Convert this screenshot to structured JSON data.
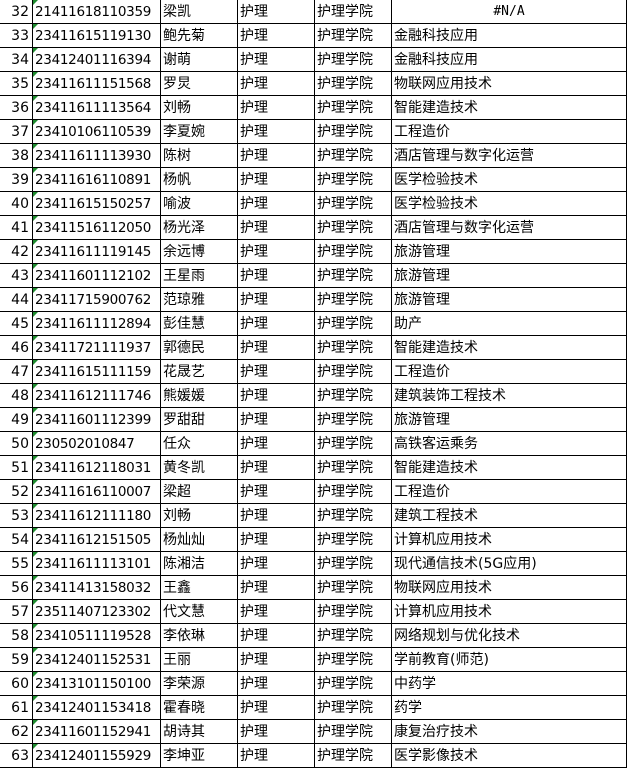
{
  "rows": [
    {
      "no": "32",
      "id": "21411618110359",
      "name": "梁凯",
      "major": "护理",
      "college": "护理学院",
      "target": "#N/A"
    },
    {
      "no": "33",
      "id": "23411615119130",
      "name": "鲍先菊",
      "major": "护理",
      "college": "护理学院",
      "target": "金融科技应用"
    },
    {
      "no": "34",
      "id": "23412401116394",
      "name": "谢萌",
      "major": "护理",
      "college": "护理学院",
      "target": "金融科技应用"
    },
    {
      "no": "35",
      "id": "23411611151568",
      "name": "罗炅",
      "major": "护理",
      "college": "护理学院",
      "target": "物联网应用技术"
    },
    {
      "no": "36",
      "id": "23411611113564",
      "name": "刘畅",
      "major": "护理",
      "college": "护理学院",
      "target": "智能建造技术"
    },
    {
      "no": "37",
      "id": "23410106110539",
      "name": "李夏婉",
      "major": "护理",
      "college": "护理学院",
      "target": "工程造价"
    },
    {
      "no": "38",
      "id": "23411611113930",
      "name": "陈树",
      "major": "护理",
      "college": "护理学院",
      "target": "酒店管理与数字化运营"
    },
    {
      "no": "39",
      "id": "23411616110891",
      "name": "杨帆",
      "major": "护理",
      "college": "护理学院",
      "target": "医学检验技术"
    },
    {
      "no": "40",
      "id": "23411615150257",
      "name": "喻波",
      "major": "护理",
      "college": "护理学院",
      "target": "医学检验技术"
    },
    {
      "no": "41",
      "id": "23411516112050",
      "name": "杨光泽",
      "major": "护理",
      "college": "护理学院",
      "target": "酒店管理与数字化运营"
    },
    {
      "no": "42",
      "id": "23411611119145",
      "name": "余远博",
      "major": "护理",
      "college": "护理学院",
      "target": "旅游管理"
    },
    {
      "no": "43",
      "id": "23411601112102",
      "name": "王星雨",
      "major": "护理",
      "college": "护理学院",
      "target": "旅游管理"
    },
    {
      "no": "44",
      "id": "23411715900762",
      "name": "范琼雅",
      "major": "护理",
      "college": "护理学院",
      "target": "旅游管理"
    },
    {
      "no": "45",
      "id": "23411611112894",
      "name": "彭佳慧",
      "major": "护理",
      "college": "护理学院",
      "target": "助产"
    },
    {
      "no": "46",
      "id": "23411721111937",
      "name": "郭德民",
      "major": "护理",
      "college": "护理学院",
      "target": "智能建造技术"
    },
    {
      "no": "47",
      "id": "23411615111159",
      "name": "花晟艺",
      "major": "护理",
      "college": "护理学院",
      "target": "工程造价"
    },
    {
      "no": "48",
      "id": "23411612111746",
      "name": "熊媛媛",
      "major": "护理",
      "college": "护理学院",
      "target": "建筑装饰工程技术"
    },
    {
      "no": "49",
      "id": "23411601112399",
      "name": "罗甜甜",
      "major": "护理",
      "college": "护理学院",
      "target": "旅游管理"
    },
    {
      "no": "50",
      "id": "230502010847",
      "name": "任众",
      "major": "护理",
      "college": "护理学院",
      "target": "高铁客运乘务"
    },
    {
      "no": "51",
      "id": "23411612118031",
      "name": "黄冬凯",
      "major": "护理",
      "college": "护理学院",
      "target": "智能建造技术"
    },
    {
      "no": "52",
      "id": "23411616110007",
      "name": "梁超",
      "major": "护理",
      "college": "护理学院",
      "target": "工程造价"
    },
    {
      "no": "53",
      "id": "23411612111180",
      "name": "刘畅",
      "major": "护理",
      "college": "护理学院",
      "target": "建筑工程技术"
    },
    {
      "no": "54",
      "id": "23411612151505",
      "name": "杨灿灿",
      "major": "护理",
      "college": "护理学院",
      "target": "计算机应用技术"
    },
    {
      "no": "55",
      "id": "23411611113101",
      "name": "陈湘洁",
      "major": "护理",
      "college": "护理学院",
      "target": "现代通信技术(5G应用)"
    },
    {
      "no": "56",
      "id": "23411413158032",
      "name": "王鑫",
      "major": "护理",
      "college": "护理学院",
      "target": "物联网应用技术"
    },
    {
      "no": "57",
      "id": "23511407123302",
      "name": "代文慧",
      "major": "护理",
      "college": "护理学院",
      "target": "计算机应用技术"
    },
    {
      "no": "58",
      "id": "23410511119528",
      "name": "李依琳",
      "major": "护理",
      "college": "护理学院",
      "target": "网络规划与优化技术"
    },
    {
      "no": "59",
      "id": "23412401152531",
      "name": "王丽",
      "major": "护理",
      "college": "护理学院",
      "target": "学前教育(师范)"
    },
    {
      "no": "60",
      "id": "23413101150100",
      "name": "李荣源",
      "major": "护理",
      "college": "护理学院",
      "target": "中药学"
    },
    {
      "no": "61",
      "id": "23412401153418",
      "name": "霍春晓",
      "major": "护理",
      "college": "护理学院",
      "target": "药学"
    },
    {
      "no": "62",
      "id": "23411601152941",
      "name": "胡诗其",
      "major": "护理",
      "college": "护理学院",
      "target": "康复治疗技术"
    },
    {
      "no": "63",
      "id": "23412401155929",
      "name": "李坤亚",
      "major": "护理",
      "college": "护理学院",
      "target": "医学影像技术"
    }
  ]
}
